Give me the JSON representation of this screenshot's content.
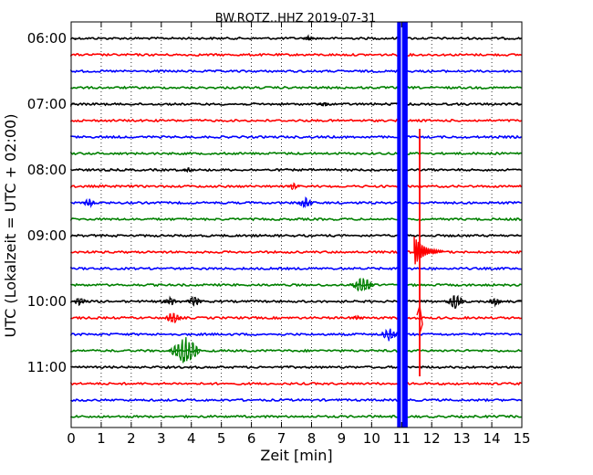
{
  "chart_data": {
    "type": "line",
    "title": "BW.ROTZ..HHZ 2019-07-31",
    "xlabel": "Zeit  [min]",
    "ylabel": "UTC (Lokalzeit = UTC + 02:00)",
    "xlim": [
      0,
      15
    ],
    "x_ticks": [
      "0",
      "1",
      "2",
      "3",
      "4",
      "5",
      "6",
      "7",
      "8",
      "9",
      "10",
      "11",
      "12",
      "13",
      "14",
      "15"
    ],
    "y_ticks": [
      "06:00",
      "07:00",
      "08:00",
      "09:00",
      "10:00",
      "11:00"
    ],
    "grid": true,
    "trace_interval_min": 15,
    "trace_colors": [
      "#000000",
      "#ff0000",
      "#0000ff",
      "#008000"
    ],
    "traces": [
      {
        "start": "06:00",
        "events": [
          {
            "t": 7.9,
            "amp": 3
          }
        ]
      },
      {
        "start": "06:15",
        "events": []
      },
      {
        "start": "06:30",
        "events": []
      },
      {
        "start": "06:45",
        "events": []
      },
      {
        "start": "07:00",
        "events": [
          {
            "t": 8.4,
            "amp": 3
          }
        ]
      },
      {
        "start": "07:15",
        "events": []
      },
      {
        "start": "07:30",
        "events": []
      },
      {
        "start": "07:45",
        "events": []
      },
      {
        "start": "08:00",
        "events": [
          {
            "t": 3.9,
            "amp": 3
          }
        ]
      },
      {
        "start": "08:15",
        "events": [
          {
            "t": 7.4,
            "amp": 4
          }
        ]
      },
      {
        "start": "08:30",
        "events": [
          {
            "t": 0.6,
            "amp": 5
          },
          {
            "t": 7.8,
            "amp": 6
          }
        ]
      },
      {
        "start": "08:45",
        "events": []
      },
      {
        "start": "09:00",
        "events": []
      },
      {
        "start": "09:15",
        "events": []
      },
      {
        "start": "09:30",
        "events": []
      },
      {
        "start": "09:45",
        "events": [
          {
            "t": 9.7,
            "amp": 10
          }
        ]
      },
      {
        "start": "10:00",
        "events": [
          {
            "t": 0.3,
            "amp": 5
          },
          {
            "t": 3.3,
            "amp": 5
          },
          {
            "t": 4.1,
            "amp": 6
          },
          {
            "t": 12.8,
            "amp": 8
          },
          {
            "t": 14.1,
            "amp": 5
          }
        ]
      },
      {
        "start": "10:15",
        "events": [
          {
            "t": 3.4,
            "amp": 7
          },
          {
            "t": 9.5,
            "amp": 3
          }
        ]
      },
      {
        "start": "10:30",
        "events": [
          {
            "t": 10.6,
            "amp": 8
          }
        ]
      },
      {
        "start": "10:45",
        "events": [
          {
            "t": 3.8,
            "amp": 16
          }
        ]
      },
      {
        "start": "11:00",
        "events": []
      },
      {
        "start": "11:15",
        "events": []
      },
      {
        "start": "11:30",
        "events": []
      },
      {
        "start": "11:45",
        "events": []
      }
    ],
    "saturation_band": {
      "x_from": 10.85,
      "x_to": 11.2,
      "color": "#0000ff"
    },
    "spike": {
      "x": 11.6,
      "color": "#ff0000"
    }
  }
}
